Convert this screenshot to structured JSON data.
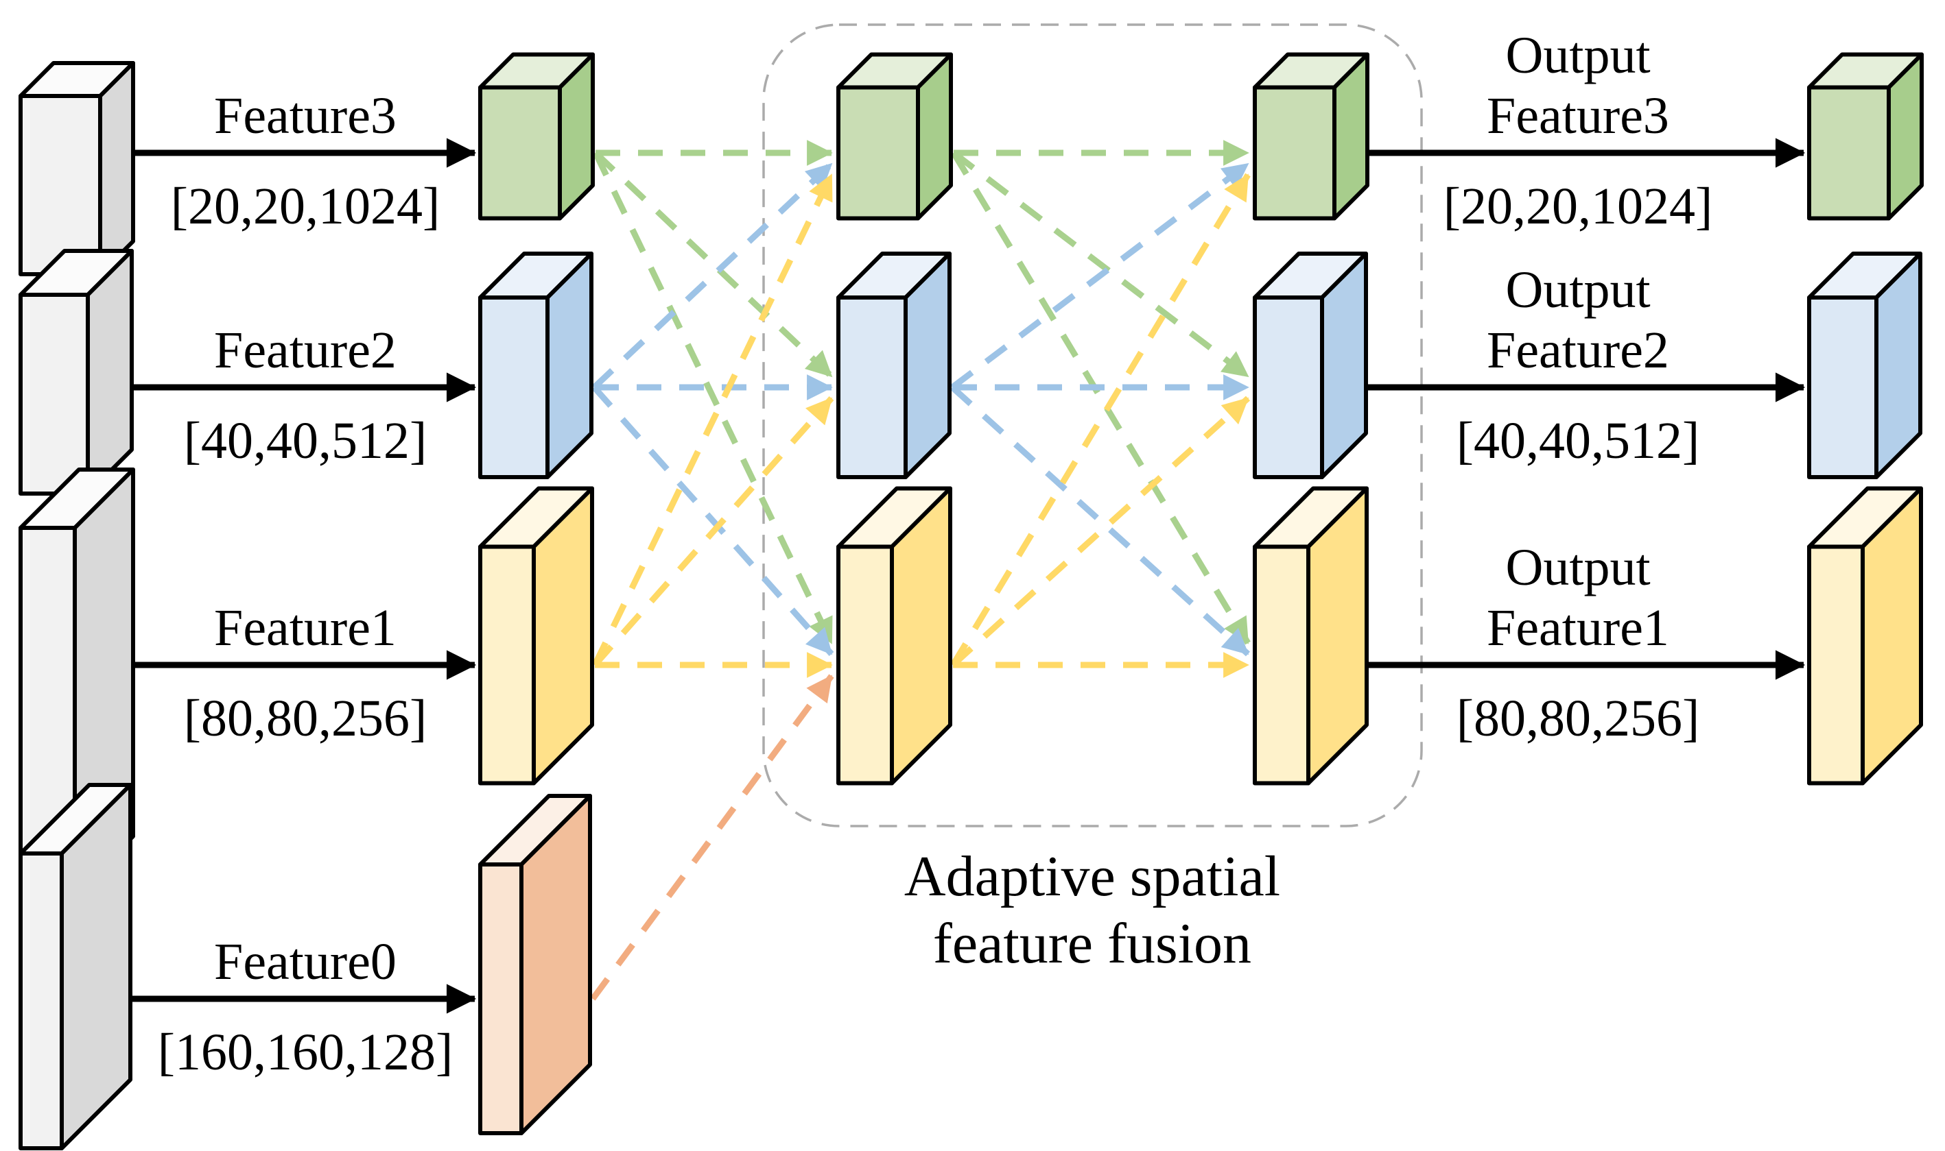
{
  "diagram": {
    "features": [
      {
        "id": "feature3",
        "label": "Feature3",
        "dims": "[20,20,1024]",
        "color": "green",
        "output": {
          "prefix": "Output",
          "label": "Feature3",
          "dims": "[20,20,1024]"
        }
      },
      {
        "id": "feature2",
        "label": "Feature2",
        "dims": "[40,40,512]",
        "color": "blue",
        "output": {
          "prefix": "Output",
          "label": "Feature2",
          "dims": "[40,40,512]"
        }
      },
      {
        "id": "feature1",
        "label": "Feature1",
        "dims": "[80,80,256]",
        "color": "yellow",
        "output": {
          "prefix": "Output",
          "label": "Feature1",
          "dims": "[80,80,256]"
        }
      },
      {
        "id": "feature0",
        "label": "Feature0",
        "dims": "[160,160,128]",
        "color": "orange",
        "output": null
      }
    ],
    "fusion": {
      "label_line1": "Adaptive spatial",
      "label_line2": "feature fusion",
      "stage1_connections": [
        [
          0,
          0
        ],
        [
          0,
          1
        ],
        [
          0,
          2
        ],
        [
          1,
          0
        ],
        [
          1,
          1
        ],
        [
          1,
          2
        ],
        [
          2,
          0
        ],
        [
          2,
          1
        ],
        [
          2,
          2
        ],
        [
          3,
          2
        ]
      ],
      "stage2_connections": [
        [
          0,
          0
        ],
        [
          0,
          1
        ],
        [
          0,
          2
        ],
        [
          1,
          0
        ],
        [
          1,
          1
        ],
        [
          1,
          2
        ],
        [
          2,
          0
        ],
        [
          2,
          1
        ],
        [
          2,
          2
        ]
      ]
    }
  },
  "palette": {
    "gray": {
      "front": "#F2F2F2",
      "side": "#D9D9D9",
      "top": "#FBFBFB"
    },
    "green": {
      "front": "#C9DDB4",
      "side": "#A7CD8C",
      "top": "#E5EFDA",
      "arrow": "#A9D18E"
    },
    "blue": {
      "front": "#DCE8F5",
      "side": "#B3CFEA",
      "top": "#EBF2FA",
      "arrow": "#9DC3E6"
    },
    "yellow": {
      "front": "#FEF2CB",
      "side": "#FFE18A",
      "top": "#FFF8E4",
      "arrow": "#FFD966"
    },
    "orange": {
      "front": "#FAE4D2",
      "side": "#F2BE9A",
      "top": "#FCF0E6",
      "arrow": "#F2AC80"
    },
    "outline": "#000000",
    "black_arrow": "#000000",
    "fusion_border": "#ABABAB",
    "text": "#000000"
  }
}
